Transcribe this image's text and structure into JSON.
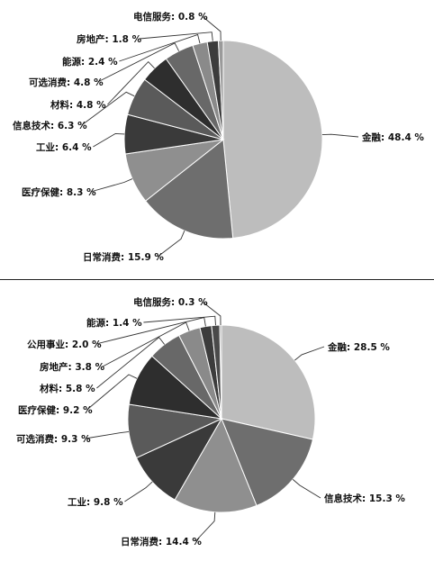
{
  "chart_data": [
    {
      "type": "pie",
      "start_angle_deg": 0,
      "direction": "clockwise",
      "slices": [
        {
          "label": "金融",
          "value": 48.4,
          "text": "金融: 48.4 %",
          "color": "#bdbdbd"
        },
        {
          "label": "日常消费",
          "value": 15.9,
          "text": "日常消费: 15.9 %",
          "color": "#6e6e6e"
        },
        {
          "label": "医疗保健",
          "value": 8.3,
          "text": "医疗保健: 8.3 %",
          "color": "#8f8f8f"
        },
        {
          "label": "工业",
          "value": 6.4,
          "text": "工业: 6.4 %",
          "color": "#3a3a3a"
        },
        {
          "label": "信息技术",
          "value": 6.3,
          "text": "信息技术: 6.3 %",
          "color": "#5a5a5a"
        },
        {
          "label": "材料",
          "value": 4.8,
          "text": "材料: 4.8 %",
          "color": "#2e2e2e"
        },
        {
          "label": "可选消费",
          "value": 4.8,
          "text": "可选消费: 4.8 %",
          "color": "#686868"
        },
        {
          "label": "能源",
          "value": 2.4,
          "text": "能源: 2.4 %",
          "color": "#8a8a8a"
        },
        {
          "label": "房地产",
          "value": 1.8,
          "text": "房地产: 1.8 %",
          "color": "#3c3c3c"
        },
        {
          "label": "电信服务",
          "value": 0.8,
          "text": "电信服务: 0.8 %",
          "color": "#9a9a9a"
        }
      ]
    },
    {
      "type": "pie",
      "start_angle_deg": 0,
      "direction": "clockwise",
      "slices": [
        {
          "label": "金融",
          "value": 28.5,
          "text": "金融: 28.5 %",
          "color": "#bdbdbd"
        },
        {
          "label": "信息技术",
          "value": 15.3,
          "text": "信息技术: 15.3 %",
          "color": "#6e6e6e"
        },
        {
          "label": "日常消费",
          "value": 14.4,
          "text": "日常消费: 14.4 %",
          "color": "#8f8f8f"
        },
        {
          "label": "工业",
          "value": 9.8,
          "text": "工业: 9.8 %",
          "color": "#3a3a3a"
        },
        {
          "label": "可选消费",
          "value": 9.3,
          "text": "可选消费: 9.3 %",
          "color": "#5a5a5a"
        },
        {
          "label": "医疗保健",
          "value": 9.2,
          "text": "医疗保健: 9.2 %",
          "color": "#2e2e2e"
        },
        {
          "label": "材料",
          "value": 5.8,
          "text": "材料: 5.8 %",
          "color": "#686868"
        },
        {
          "label": "房地产",
          "value": 3.8,
          "text": "房地产: 3.8 %",
          "color": "#8a8a8a"
        },
        {
          "label": "公用事业",
          "value": 2.0,
          "text": "公用事业: 2.0 %",
          "color": "#3c3c3c"
        },
        {
          "label": "能源",
          "value": 1.4,
          "text": "能源: 1.4 %",
          "color": "#4a4a4a"
        },
        {
          "label": "电信服务",
          "value": 0.3,
          "text": "电信服务: 0.3 %",
          "color": "#9a9a9a"
        }
      ]
    }
  ]
}
